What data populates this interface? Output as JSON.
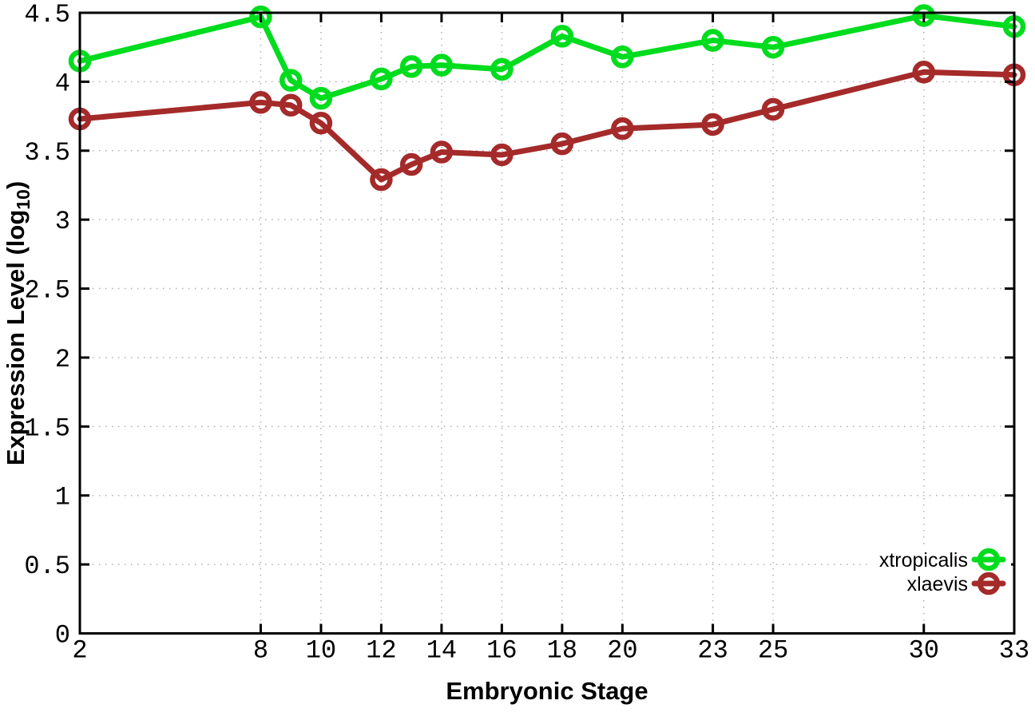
{
  "chart_data": {
    "type": "line",
    "title": "",
    "xlabel": "Embryonic Stage",
    "ylabel": {
      "prefix": "Expression Level (log",
      "subscript": "10",
      "suffix": ")"
    },
    "xlim": [
      2,
      33
    ],
    "ylim": [
      0,
      4.5
    ],
    "grid": true,
    "legend_position": "bottom-right",
    "x": [
      2,
      8,
      9,
      10,
      12,
      13,
      14,
      16,
      18,
      20,
      23,
      25,
      30,
      33
    ],
    "xticks": [
      2,
      8,
      10,
      12,
      14,
      16,
      18,
      20,
      23,
      25,
      30,
      33
    ],
    "yticks": [
      0,
      0.5,
      1,
      1.5,
      2,
      2.5,
      3,
      3.5,
      4,
      4.5
    ],
    "series": [
      {
        "name": "xtropicalis",
        "color": "#00dc1e",
        "values": [
          4.15,
          4.47,
          4.01,
          3.88,
          4.02,
          4.11,
          4.12,
          4.09,
          4.33,
          4.18,
          4.3,
          4.25,
          4.48,
          4.4
        ]
      },
      {
        "name": "xlaevis",
        "color": "#a52a2a",
        "values": [
          3.73,
          3.85,
          3.83,
          3.7,
          3.29,
          3.4,
          3.49,
          3.47,
          3.55,
          3.66,
          3.69,
          3.8,
          4.07,
          4.05
        ]
      }
    ],
    "colors": {
      "axis": "#000000",
      "grid": "#b0b0b0",
      "background": "#ffffff"
    }
  }
}
